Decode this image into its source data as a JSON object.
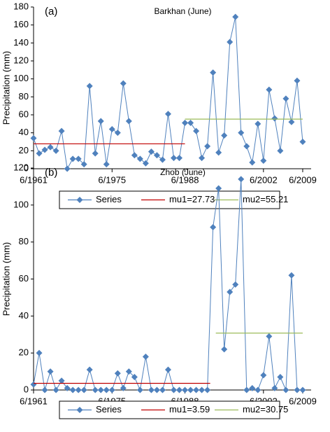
{
  "chart_data": [
    {
      "type": "line",
      "label": "(a)",
      "title": "Barkhan (June)",
      "ylabel": "Precipitation (mm)",
      "x": [
        1961,
        1962,
        1963,
        1964,
        1965,
        1966,
        1967,
        1968,
        1969,
        1970,
        1971,
        1972,
        1973,
        1974,
        1975,
        1976,
        1977,
        1978,
        1979,
        1980,
        1981,
        1982,
        1983,
        1984,
        1985,
        1986,
        1987,
        1988,
        1989,
        1990,
        1991,
        1992,
        1993,
        1994,
        1995,
        1996,
        1997,
        1998,
        1999,
        2000,
        2001,
        2002,
        2003,
        2004,
        2005,
        2006,
        2007,
        2008,
        2009
      ],
      "xlim": [
        1961,
        2010.5
      ],
      "xticks": [
        {
          "value": 1961,
          "label": "6/1961"
        },
        {
          "value": 1975,
          "label": "6/1975"
        },
        {
          "value": 1988,
          "label": "6/1988"
        },
        {
          "value": 2002,
          "label": "6/2002"
        },
        {
          "value": 2009,
          "label": "6/2009"
        }
      ],
      "ylim": [
        0,
        180
      ],
      "yticks": [
        0,
        20,
        40,
        60,
        80,
        100,
        120,
        140,
        160,
        180
      ],
      "legend": "bottom",
      "series": [
        {
          "name": "Series",
          "color": "#4f81bd",
          "marker": "diamond",
          "values": [
            34,
            17,
            21,
            24,
            20,
            42,
            0,
            11,
            11,
            5,
            92,
            17,
            53,
            5,
            44,
            40,
            95,
            53,
            15,
            11,
            6,
            19,
            15,
            10,
            61,
            12,
            12,
            51,
            51,
            42,
            12,
            25,
            107,
            18,
            37,
            141,
            169,
            40,
            25,
            7,
            50,
            9,
            88,
            56,
            20,
            78,
            52,
            98,
            30
          ]
        },
        {
          "name": "mu1=27.73",
          "color": "#c00000",
          "x": [
            1961,
            1988
          ],
          "values": [
            27.73,
            27.73
          ]
        },
        {
          "name": "mu2=55.21",
          "color": "#9bbb59",
          "x": [
            1988,
            2009
          ],
          "values": [
            55.21,
            55.21
          ]
        }
      ]
    },
    {
      "type": "line",
      "label": "(b)",
      "title": "Zhob (June)",
      "ylabel": "Precipitation (mm)",
      "x": [
        1961,
        1962,
        1963,
        1964,
        1965,
        1966,
        1967,
        1968,
        1969,
        1970,
        1971,
        1972,
        1973,
        1974,
        1975,
        1976,
        1977,
        1978,
        1979,
        1980,
        1981,
        1982,
        1983,
        1984,
        1985,
        1986,
        1987,
        1988,
        1989,
        1990,
        1991,
        1992,
        1993,
        1994,
        1995,
        1996,
        1997,
        1998,
        1999,
        2000,
        2001,
        2002,
        2003,
        2004,
        2005,
        2006,
        2007,
        2008,
        2009
      ],
      "xlim": [
        1961,
        2010.5
      ],
      "xticks": [
        {
          "value": 1961,
          "label": "6/1961"
        },
        {
          "value": 1975,
          "label": "6/1975"
        },
        {
          "value": 1988,
          "label": "6/1988"
        },
        {
          "value": 2002,
          "label": "6/2002"
        },
        {
          "value": 2009,
          "label": "6/2009"
        }
      ],
      "ylim": [
        0,
        120
      ],
      "yticks": [
        0,
        20,
        40,
        60,
        80,
        100,
        120
      ],
      "legend": "bottom",
      "series": [
        {
          "name": "Series",
          "color": "#4f81bd",
          "marker": "diamond",
          "values": [
            3,
            20,
            0,
            10,
            0,
            5,
            1,
            0,
            0,
            0,
            11,
            0,
            0,
            0,
            0,
            9,
            1,
            10,
            7,
            0,
            18,
            0,
            0,
            0,
            11,
            0,
            0,
            0,
            0,
            0,
            0,
            0,
            88,
            109,
            22,
            53,
            57,
            114,
            0,
            1,
            0,
            8,
            29,
            1,
            7,
            0,
            62,
            0,
            0
          ]
        },
        {
          "name": "mu1=3.59",
          "color": "#c00000",
          "x": [
            1961,
            1992.5
          ],
          "values": [
            3.59,
            3.59
          ]
        },
        {
          "name": "mu2=30.75",
          "color": "#9bbb59",
          "x": [
            1993.5,
            2009
          ],
          "values": [
            30.75,
            30.75
          ]
        }
      ]
    }
  ]
}
